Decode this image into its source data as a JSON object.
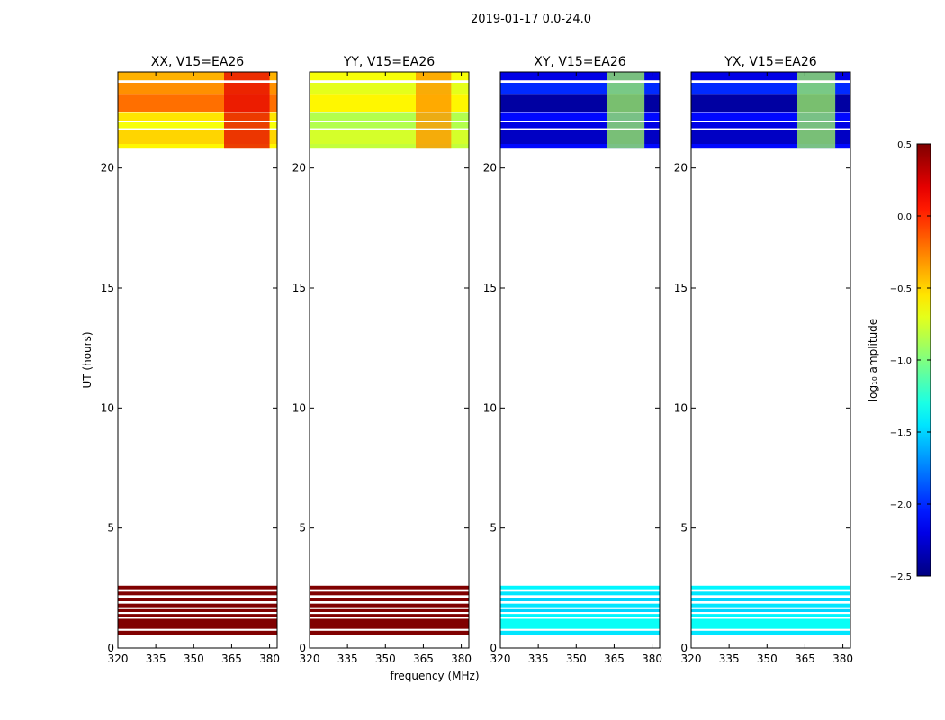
{
  "figure": {
    "suptitle": "2019-01-17 0.0-24.0"
  },
  "chart_data": {
    "type": "heatmap",
    "panels": [
      {
        "title": "XX, V15=EA26",
        "polarization": "XX",
        "ylabel": "UT (hours)"
      },
      {
        "title": "YY, V15=EA26",
        "polarization": "YY",
        "ylabel": ""
      },
      {
        "title": "XY, V15=EA26",
        "polarization": "XY",
        "ylabel": ""
      },
      {
        "title": "YX, V15=EA26",
        "polarization": "YX",
        "ylabel": ""
      }
    ],
    "xlabel": "frequency (MHz)",
    "xlim": [
      320,
      383
    ],
    "xticks": [
      320,
      335,
      350,
      365,
      380
    ],
    "ylim": [
      0,
      24
    ],
    "yticks": [
      0,
      5,
      10,
      15,
      20
    ],
    "colorbar": {
      "label": "log₁₀ amplitude",
      "range": [
        -2.5,
        0.5
      ],
      "ticks": [
        0.5,
        0.0,
        -0.5,
        -1.0,
        -1.5,
        -2.0,
        -2.5
      ],
      "tick_labels": [
        "0.5",
        "0.0",
        "−0.5",
        "−1.0",
        "−1.5",
        "−2.0",
        "−2.5"
      ],
      "colormap": "jet"
    },
    "observed_time_ranges_hours": [
      [
        0.5,
        2.65
      ],
      [
        20.8,
        24.0
      ]
    ],
    "panel_data": {
      "XX": {
        "segments": [
          {
            "t0": 23.65,
            "t1": 24.0,
            "value": -0.4
          },
          {
            "t0": 23.05,
            "t1": 23.55,
            "value": -0.3
          },
          {
            "t0": 22.35,
            "t1": 23.05,
            "value": -0.2
          },
          {
            "t0": 21.95,
            "t1": 22.3,
            "value": -0.55
          },
          {
            "t0": 21.65,
            "t1": 21.9,
            "value": -0.65
          },
          {
            "t0": 21.0,
            "t1": 21.6,
            "value": -0.5
          },
          {
            "t0": 20.8,
            "t1": 21.0,
            "value": -0.6
          },
          {
            "t0": 2.45,
            "t1": 2.6,
            "value": 0.5
          },
          {
            "t0": 2.2,
            "t1": 2.35,
            "value": 0.5
          },
          {
            "t0": 1.95,
            "t1": 2.1,
            "value": 0.5
          },
          {
            "t0": 1.7,
            "t1": 1.85,
            "value": 0.5
          },
          {
            "t0": 1.5,
            "t1": 1.62,
            "value": 0.5
          },
          {
            "t0": 1.3,
            "t1": 1.42,
            "value": 0.5
          },
          {
            "t0": 0.8,
            "t1": 1.22,
            "value": 0.5
          },
          {
            "t0": 0.55,
            "t1": 0.72,
            "value": 0.5
          }
        ],
        "bands": [
          {
            "f0": 362,
            "f1": 380,
            "t0": 20.8,
            "t1": 24.0,
            "value": 0.2
          }
        ]
      },
      "YY": {
        "segments": [
          {
            "t0": 23.65,
            "t1": 24.0,
            "value": -0.65
          },
          {
            "t0": 23.05,
            "t1": 23.55,
            "value": -0.7
          },
          {
            "t0": 22.35,
            "t1": 23.05,
            "value": -0.6
          },
          {
            "t0": 21.95,
            "t1": 22.3,
            "value": -0.85
          },
          {
            "t0": 21.65,
            "t1": 21.9,
            "value": -0.85
          },
          {
            "t0": 21.0,
            "t1": 21.6,
            "value": -0.75
          },
          {
            "t0": 20.8,
            "t1": 21.0,
            "value": -0.8
          },
          {
            "t0": 2.45,
            "t1": 2.6,
            "value": 0.5
          },
          {
            "t0": 2.2,
            "t1": 2.35,
            "value": 0.5
          },
          {
            "t0": 1.95,
            "t1": 2.1,
            "value": 0.5
          },
          {
            "t0": 1.7,
            "t1": 1.85,
            "value": 0.5
          },
          {
            "t0": 1.5,
            "t1": 1.62,
            "value": 0.5
          },
          {
            "t0": 1.3,
            "t1": 1.42,
            "value": 0.5
          },
          {
            "t0": 0.8,
            "t1": 1.22,
            "value": 0.5
          },
          {
            "t0": 0.55,
            "t1": 0.72,
            "value": 0.5
          }
        ],
        "bands": [
          {
            "f0": 362,
            "f1": 376,
            "t0": 20.8,
            "t1": 24.0,
            "value": -0.3
          }
        ]
      },
      "XY": {
        "segments": [
          {
            "t0": 23.65,
            "t1": 24.0,
            "value": -2.2
          },
          {
            "t0": 23.05,
            "t1": 23.55,
            "value": -2.0
          },
          {
            "t0": 22.35,
            "t1": 23.05,
            "value": -2.4
          },
          {
            "t0": 21.95,
            "t1": 22.3,
            "value": -2.1
          },
          {
            "t0": 21.65,
            "t1": 21.9,
            "value": -2.2
          },
          {
            "t0": 21.0,
            "t1": 21.6,
            "value": -2.3
          },
          {
            "t0": 20.8,
            "t1": 21.0,
            "value": -2.1
          },
          {
            "t0": 2.45,
            "t1": 2.6,
            "value": -1.4
          },
          {
            "t0": 2.2,
            "t1": 2.35,
            "value": -1.45
          },
          {
            "t0": 1.95,
            "t1": 2.1,
            "value": -1.5
          },
          {
            "t0": 1.7,
            "t1": 1.85,
            "value": -1.45
          },
          {
            "t0": 1.5,
            "t1": 1.62,
            "value": -1.5
          },
          {
            "t0": 1.3,
            "t1": 1.42,
            "value": -1.4
          },
          {
            "t0": 0.8,
            "t1": 1.22,
            "value": -1.35
          },
          {
            "t0": 0.55,
            "t1": 0.72,
            "value": -1.45
          }
        ],
        "bands": [
          {
            "f0": 362,
            "f1": 377,
            "t0": 20.8,
            "t1": 24.0,
            "value": -0.9
          }
        ]
      },
      "YX": {
        "segments": [
          {
            "t0": 23.65,
            "t1": 24.0,
            "value": -2.2
          },
          {
            "t0": 23.05,
            "t1": 23.55,
            "value": -2.0
          },
          {
            "t0": 22.35,
            "t1": 23.05,
            "value": -2.4
          },
          {
            "t0": 21.95,
            "t1": 22.3,
            "value": -2.1
          },
          {
            "t0": 21.65,
            "t1": 21.9,
            "value": -2.2
          },
          {
            "t0": 21.0,
            "t1": 21.6,
            "value": -2.3
          },
          {
            "t0": 20.8,
            "t1": 21.0,
            "value": -2.1
          },
          {
            "t0": 2.45,
            "t1": 2.6,
            "value": -1.4
          },
          {
            "t0": 2.2,
            "t1": 2.35,
            "value": -1.45
          },
          {
            "t0": 1.95,
            "t1": 2.1,
            "value": -1.5
          },
          {
            "t0": 1.7,
            "t1": 1.85,
            "value": -1.45
          },
          {
            "t0": 1.5,
            "t1": 1.62,
            "value": -1.5
          },
          {
            "t0": 1.3,
            "t1": 1.42,
            "value": -1.4
          },
          {
            "t0": 0.8,
            "t1": 1.22,
            "value": -1.35
          },
          {
            "t0": 0.55,
            "t1": 0.72,
            "value": -1.45
          }
        ],
        "bands": [
          {
            "f0": 362,
            "f1": 377,
            "t0": 20.8,
            "t1": 24.0,
            "value": -0.9
          }
        ]
      }
    }
  }
}
